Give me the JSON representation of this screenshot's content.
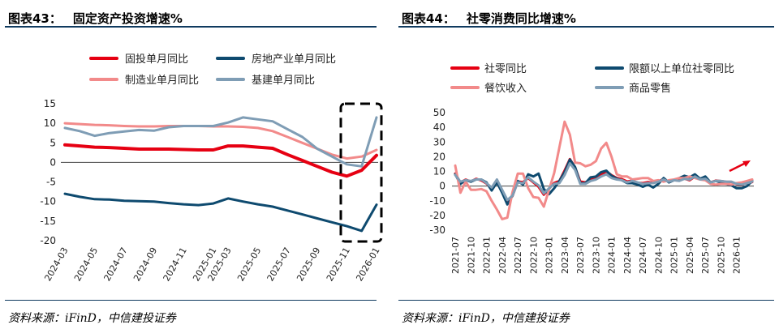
{
  "charts": [
    {
      "title_label": "图表43：",
      "title_text": "固定资产投资增速%",
      "source": "资料来源：iFinD，中信建投证券"
    },
    {
      "title_label": "图表44：",
      "title_text": "社零消费同比增速%",
      "source": "资料来源：iFinD，中信建投证券"
    }
  ],
  "chart_data": [
    {
      "type": "line",
      "title": "固定资产投资增速%",
      "x": [
        "2024-03",
        "2024-04",
        "2024-05",
        "2024-06",
        "2024-07",
        "2024-08",
        "2024-09",
        "2024-10",
        "2024-11",
        "2024-12",
        "2025-01",
        "2025-03",
        "2025-04",
        "2025-05",
        "2025-06",
        "2025-07",
        "2025-08",
        "2025-09",
        "2025-10",
        "2025-11",
        "2025-12",
        "2026-01"
      ],
      "x_tick_labels": [
        "2024-03",
        "2024-05",
        "2024-07",
        "2024-09",
        "2024-11",
        "2025-01",
        "2025-03",
        "2025-05",
        "2025-07",
        "2025-09",
        "2025-11",
        "2026-01"
      ],
      "ylim": [
        -20,
        15
      ],
      "y_ticks": [
        -20,
        -15,
        -10,
        -5,
        0,
        5,
        10,
        15
      ],
      "legend_position": "top",
      "series": [
        {
          "name": "固投单月同比",
          "color": "#e60012",
          "width": 4,
          "values": [
            4.5,
            4.2,
            3.9,
            3.8,
            3.6,
            3.4,
            3.4,
            3.4,
            3.3,
            3.2,
            3.2,
            4.2,
            4.2,
            3.9,
            3.6,
            2.0,
            0.5,
            -1.0,
            -2.5,
            -3.5,
            -2.0,
            1.8
          ]
        },
        {
          "name": "房地产业单月同比",
          "color": "#0e4a6f",
          "width": 3,
          "values": [
            -8.0,
            -8.8,
            -9.4,
            -9.5,
            -9.8,
            -9.9,
            -10.0,
            -10.4,
            -10.7,
            -10.9,
            -10.5,
            -9.2,
            -10.0,
            -10.7,
            -11.3,
            -12.3,
            -13.3,
            -14.3,
            -15.3,
            -16.3,
            -17.5,
            -10.8
          ]
        },
        {
          "name": "制造业单月同比",
          "color": "#f28a8a",
          "width": 3,
          "values": [
            10.0,
            9.8,
            9.6,
            9.5,
            9.3,
            9.2,
            9.2,
            9.3,
            9.3,
            9.3,
            9.2,
            9.2,
            9.1,
            8.8,
            8.0,
            6.5,
            5.0,
            3.5,
            2.0,
            1.0,
            1.5,
            3.2
          ]
        },
        {
          "name": "基建单月同比",
          "color": "#7f9db5",
          "width": 3,
          "values": [
            8.8,
            8.0,
            6.8,
            7.5,
            7.9,
            8.3,
            8.1,
            9.0,
            9.3,
            9.3,
            9.3,
            10.2,
            11.5,
            11.0,
            10.5,
            8.5,
            6.5,
            3.5,
            1.5,
            -0.5,
            -1.0,
            11.5
          ]
        }
      ],
      "annotation": "dashed-box-around-2025-11-to-2026-01"
    },
    {
      "type": "line",
      "title": "社零消费同比增速%",
      "x_tick_labels": [
        "2021-07",
        "2021-10",
        "2022-01",
        "2022-04",
        "2022-07",
        "2022-10",
        "2023-01",
        "2023-04",
        "2023-07",
        "2023-10",
        "2024-01",
        "2024-04",
        "2024-07",
        "2024-10",
        "2025-01",
        "2025-04",
        "2025-07",
        "2025-10",
        "2026-01"
      ],
      "ylim": [
        -30,
        50
      ],
      "y_ticks": [
        -30,
        -20,
        -10,
        0,
        10,
        20,
        30,
        40,
        50
      ],
      "legend_position": "top",
      "series": [
        {
          "name": "社零同比",
          "color": "#e60012",
          "width": 3,
          "values": [
            8.5,
            2.5,
            4.4,
            3.1,
            4.9,
            3.9,
            1.7,
            -1.8,
            4.2,
            -3.5,
            -11.1,
            -6.7,
            3.1,
            2.7,
            5.4,
            2.5,
            -0.5,
            -5.9,
            -1.8,
            2.1,
            3.5,
            10.6,
            18.4,
            12.7,
            3.1,
            2.5,
            4.6,
            5.5,
            7.6,
            10.1,
            7.4,
            5.5,
            4.7,
            3.1,
            3.7,
            2.3,
            2.0,
            2.7,
            2.1,
            3.2,
            4.8,
            3.0,
            4.0,
            3.7,
            5.1,
            4.0,
            6.4,
            4.8,
            5.2,
            2.5,
            3.7,
            3.4,
            3.0,
            2.9,
            1.3,
            0.9,
            2.0,
            2.8
          ]
        },
        {
          "name": "限额以上单位社零同比",
          "color": "#0e4a6f",
          "width": 3,
          "values": [
            8.0,
            1.5,
            4.0,
            3.0,
            4.5,
            4.5,
            2.5,
            -3.0,
            2.5,
            -4.5,
            -12.5,
            -6.5,
            3.5,
            1.0,
            8.0,
            6.5,
            8.5,
            -2.0,
            -5.5,
            -1.5,
            3.5,
            9.5,
            18.0,
            13.0,
            2.0,
            2.0,
            6.0,
            6.5,
            9.5,
            10.5,
            7.0,
            5.0,
            4.0,
            2.0,
            2.0,
            1.0,
            -0.5,
            1.0,
            -1.0,
            1.5,
            5.5,
            2.5,
            4.0,
            5.5,
            7.0,
            6.0,
            8.0,
            5.0,
            6.5,
            2.5,
            3.5,
            2.5,
            1.5,
            0.5,
            -1.5,
            -1.5,
            0.0,
            3.5
          ]
        },
        {
          "name": "餐饮收入",
          "color": "#f28a8a",
          "width": 3,
          "values": [
            14.0,
            -4.5,
            3.0,
            -2.5,
            -2.5,
            -2.0,
            -3.5,
            -10.0,
            -16.0,
            -22.5,
            -21.5,
            -4.0,
            8.5,
            8.5,
            -1.5,
            -7.5,
            -8.0,
            -14.0,
            -2.5,
            9.0,
            26.5,
            43.8,
            35.0,
            16.0,
            15.5,
            13.5,
            14.5,
            17.0,
            25.5,
            29.5,
            20.0,
            8.0,
            6.5,
            6.5,
            4.5,
            5.0,
            5.5,
            5.5,
            3.5,
            4.0,
            3.0,
            4.0,
            4.5,
            5.5,
            5.5,
            6.5,
            5.5,
            4.5,
            4.0,
            1.5,
            1.0,
            1.5,
            1.5,
            1.0,
            2.0,
            2.5,
            3.5,
            4.5
          ]
        },
        {
          "name": "商品零售",
          "color": "#7f9db5",
          "width": 3,
          "values": [
            7.5,
            3.0,
            4.0,
            3.5,
            4.5,
            4.5,
            2.0,
            -1.0,
            4.5,
            -2.5,
            -9.5,
            -6.5,
            2.5,
            2.0,
            6.0,
            3.0,
            0.5,
            -5.0,
            -1.5,
            1.5,
            2.0,
            7.5,
            15.5,
            11.0,
            1.5,
            1.5,
            3.5,
            4.5,
            6.5,
            8.0,
            5.5,
            4.5,
            4.0,
            2.5,
            3.5,
            2.5,
            1.5,
            2.0,
            2.0,
            3.0,
            4.5,
            3.0,
            4.0,
            3.5,
            5.0,
            4.5,
            6.5,
            4.5,
            5.0,
            2.5,
            3.5,
            3.5,
            3.0,
            3.0,
            1.5,
            1.0,
            2.0,
            3.0
          ]
        }
      ],
      "annotation": "red-arrow-rising-near-2025-10"
    }
  ]
}
